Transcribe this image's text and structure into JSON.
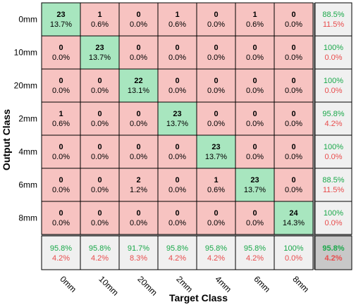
{
  "chart_data": {
    "type": "heatmap",
    "xlabel": "Target Class",
    "ylabel": "Output Class",
    "rows": [
      "0mm",
      "10mm",
      "20mm",
      "2mm",
      "4mm",
      "6mm",
      "8mm"
    ],
    "cols": [
      "0mm",
      "10mm",
      "20mm",
      "2mm",
      "4mm",
      "6mm",
      "8mm"
    ],
    "counts": [
      [
        23,
        1,
        0,
        1,
        0,
        1,
        0
      ],
      [
        0,
        23,
        0,
        0,
        0,
        0,
        0
      ],
      [
        0,
        0,
        22,
        0,
        0,
        0,
        0
      ],
      [
        1,
        0,
        0,
        23,
        0,
        0,
        0
      ],
      [
        0,
        0,
        0,
        0,
        23,
        0,
        0
      ],
      [
        0,
        0,
        2,
        0,
        1,
        23,
        0
      ],
      [
        0,
        0,
        0,
        0,
        0,
        0,
        24
      ]
    ],
    "percents": [
      [
        "13.7%",
        "0.6%",
        "0.0%",
        "0.6%",
        "0.0%",
        "0.6%",
        "0.0%"
      ],
      [
        "0.0%",
        "13.7%",
        "0.0%",
        "0.0%",
        "0.0%",
        "0.0%",
        "0.0%"
      ],
      [
        "0.0%",
        "0.0%",
        "13.1%",
        "0.0%",
        "0.0%",
        "0.0%",
        "0.0%"
      ],
      [
        "0.6%",
        "0.0%",
        "0.0%",
        "13.7%",
        "0.0%",
        "0.0%",
        "0.0%"
      ],
      [
        "0.0%",
        "0.0%",
        "0.0%",
        "0.0%",
        "13.7%",
        "0.0%",
        "0.0%"
      ],
      [
        "0.0%",
        "0.0%",
        "1.2%",
        "0.0%",
        "0.6%",
        "13.7%",
        "0.0%"
      ],
      [
        "0.0%",
        "0.0%",
        "0.0%",
        "0.0%",
        "0.0%",
        "0.0%",
        "14.3%"
      ]
    ],
    "row_summary": [
      [
        "88.5%",
        "11.5%"
      ],
      [
        "100%",
        "0.0%"
      ],
      [
        "100%",
        "0.0%"
      ],
      [
        "95.8%",
        "4.2%"
      ],
      [
        "100%",
        "0.0%"
      ],
      [
        "88.5%",
        "11.5%"
      ],
      [
        "100%",
        "0.0%"
      ]
    ],
    "col_summary": [
      [
        "95.8%",
        "4.2%"
      ],
      [
        "95.8%",
        "4.2%"
      ],
      [
        "91.7%",
        "8.3%"
      ],
      [
        "95.8%",
        "4.2%"
      ],
      [
        "95.8%",
        "4.2%"
      ],
      [
        "95.8%",
        "4.2%"
      ],
      [
        "100%",
        "0.0%"
      ]
    ],
    "overall": [
      "95.8%",
      "4.2%"
    ],
    "colors": {
      "diagonal": "#a8e6bf",
      "off_diagonal": "#f7c3c1",
      "summary": "#f0f0f0",
      "overall": "#c8c8c8",
      "good_text": "#1aa84a",
      "bad_text": "#e84c4c",
      "grid": "#000000"
    }
  }
}
